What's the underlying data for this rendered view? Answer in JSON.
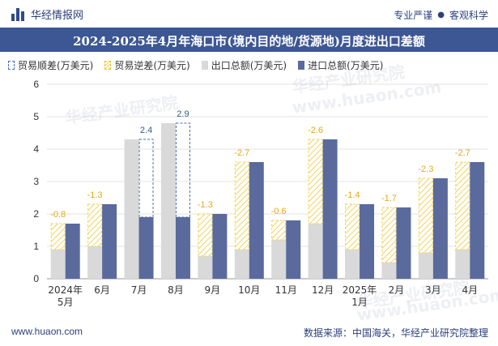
{
  "header": {
    "brand": "华经情报网",
    "tag1": "专业严谨",
    "tag_sep": "●",
    "tag2": "客观科学"
  },
  "title": "2024-2025年4月年海口市(境内目的地/货源地)月度进出口差额",
  "legend": {
    "surplus": "贸易顺差(万美元)",
    "deficit": "贸易逆差(万美元)",
    "export": "出口总额(万美元)",
    "import": "进口总额(万美元)"
  },
  "colors": {
    "title_bg": "#3d5694",
    "export": "#d9d9d9",
    "import": "#5a6a9c",
    "deficit": "#f3d25b",
    "surplus": "#4a6fb0",
    "deficit_label": "#e6a817",
    "surplus_label": "#2f5b94"
  },
  "footer": {
    "website": "www.huaon.com",
    "source": "数据来源：中国海关，华经产业研究院整理"
  },
  "watermarks": [
    "华经产业研究院",
    "www.huaon.com",
    "华经产业研究院",
    "www.huaon.com",
    "华经产业研究院"
  ],
  "chart_data": {
    "type": "bar",
    "categories": [
      "2024年\n5月",
      "6月",
      "7月",
      "8月",
      "9月",
      "10月",
      "11月",
      "12月",
      "2025年\n1月",
      "2月",
      "3月",
      "4月"
    ],
    "ylim": [
      0,
      6
    ],
    "yticks": [
      0,
      1,
      2,
      3,
      4,
      5,
      6
    ],
    "series": [
      {
        "name": "出口总额(万美元)",
        "values": [
          0.9,
          1.0,
          4.3,
          4.8,
          0.7,
          0.9,
          1.2,
          1.7,
          0.9,
          0.5,
          0.8,
          0.9
        ]
      },
      {
        "name": "进口总额(万美元)",
        "values": [
          1.7,
          2.3,
          1.9,
          1.9,
          2.0,
          3.6,
          1.8,
          4.3,
          2.3,
          2.2,
          3.1,
          3.6
        ]
      }
    ],
    "balance_labels": [
      "-0.8",
      "-1.3",
      "2.4",
      "2.9",
      "-1.3",
      "-2.7",
      "-0.6",
      "-2.6",
      "-1.4",
      "-1.7",
      "-2.3",
      "-2.7"
    ],
    "grid": true
  }
}
